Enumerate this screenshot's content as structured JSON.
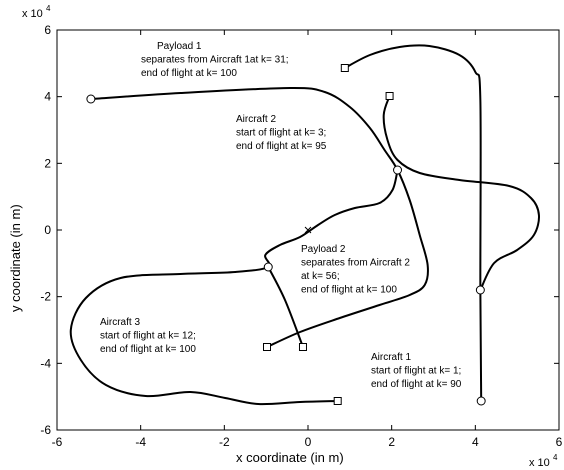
{
  "chart_data": {
    "type": "line",
    "xlabel": "x coordinate (in m)",
    "ylabel": "y coordinate (in m)",
    "x_scale_label": {
      "base": "x 10",
      "exponent": "4"
    },
    "y_scale_label": {
      "base": "x 10",
      "exponent": "4"
    },
    "xlim": [
      -6,
      6
    ],
    "ylim": [
      -6,
      6
    ],
    "xticks": [
      -6,
      -4,
      -2,
      0,
      2,
      4,
      6
    ],
    "yticks": [
      -6,
      -4,
      -2,
      0,
      2,
      4,
      6
    ],
    "color": "#000000",
    "series": [
      {
        "x": [
          -5.19,
          -3.05,
          -0.43,
          0.4,
          1.0,
          1.48,
          1.83,
          2.14,
          2.43,
          2.67,
          2.86,
          2.79,
          2.43,
          1.71,
          0.76,
          -0.19,
          -0.98
        ],
        "y": [
          3.93,
          4.11,
          4.26,
          4.14,
          3.69,
          3.06,
          2.4,
          1.8,
          0.9,
          -0.15,
          -1.05,
          -1.65,
          -1.95,
          -2.25,
          -2.64,
          -3.06,
          -3.51
        ]
      },
      {
        "x": [
          1.95,
          1.81,
          1.9,
          2.14,
          2.67,
          3.62,
          4.81,
          5.33,
          5.52,
          5.4,
          5.0,
          4.45,
          4.12
        ],
        "y": [
          4.02,
          3.45,
          2.7,
          2.1,
          1.71,
          1.5,
          1.32,
          0.96,
          0.45,
          -0.15,
          -0.6,
          -0.99,
          -1.8
        ]
      },
      {
        "x": [
          0.88,
          1.48,
          2.19,
          2.9,
          3.62,
          4.0,
          4.12,
          4.12,
          4.14
        ],
        "y": [
          4.86,
          5.25,
          5.49,
          5.52,
          5.25,
          4.74,
          3.9,
          -1.8,
          -5.13
        ]
      },
      {
        "x": [
          2.14,
          2.02,
          1.71,
          1.12,
          0.64,
          0.24,
          -0.19,
          -0.67,
          -1.02,
          -0.95,
          -1.74,
          -3.05,
          -4.48,
          -5.31,
          -5.67,
          -5.43,
          -4.83,
          -3.88,
          -2.81,
          -1.98,
          -1.19,
          -0.19,
          0.71
        ],
        "y": [
          1.8,
          1.2,
          0.81,
          0.66,
          0.45,
          0.15,
          -0.21,
          -0.45,
          -0.75,
          -1.11,
          -1.26,
          -1.32,
          -1.44,
          -2.04,
          -3.0,
          -3.9,
          -4.65,
          -4.98,
          -4.86,
          -5.04,
          -5.22,
          -5.16,
          -5.13
        ]
      },
      {
        "x": [
          -0.95,
          -0.55,
          -0.12
        ],
        "y": [
          -1.11,
          -2.1,
          -3.51
        ]
      }
    ],
    "markers": {
      "circle": {
        "x": [
          -5.19,
          2.14,
          -0.95,
          4.12,
          4.14
        ],
        "y": [
          3.93,
          1.8,
          -1.11,
          -1.8,
          -5.13
        ]
      },
      "square": {
        "x": [
          0.88,
          1.95,
          -0.98,
          -0.12,
          0.71
        ],
        "y": [
          4.86,
          4.02,
          -3.51,
          -3.51,
          -5.13
        ]
      },
      "cross": {
        "x": [
          0
        ],
        "y": [
          0
        ]
      }
    },
    "annotations": [
      [
        "Payload 1",
        "separates from Aircraft 1at k= 31;",
        "end of flight at k= 100"
      ],
      [
        "Aircraft 2",
        "start of flight at k= 3;",
        "end of flight at k= 95"
      ],
      [
        "Payload 2",
        "separates from Aircraft 2",
        "at k= 56;",
        "end of flight at k= 100"
      ],
      [
        "Aircraft 3",
        "start of flight at k= 12;",
        "end of flight at k= 100"
      ],
      [
        "Aircraft 1",
        "start of flight at k= 1;",
        "end of flight at k= 90"
      ]
    ]
  }
}
